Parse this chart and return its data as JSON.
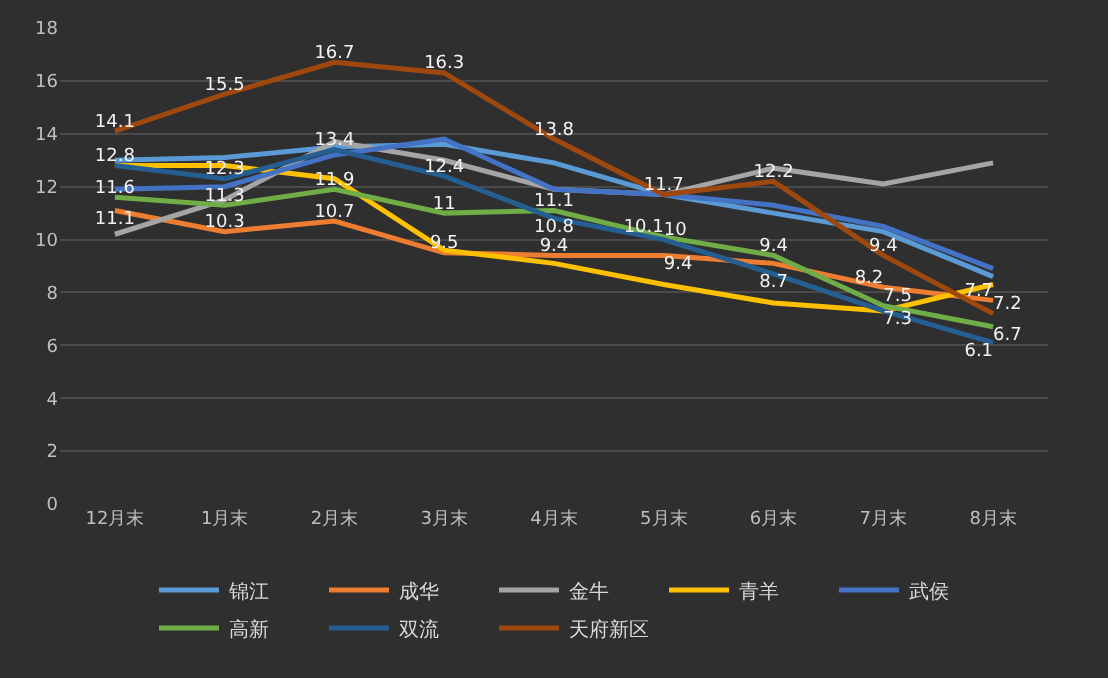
{
  "chart_data": {
    "type": "line",
    "categories": [
      "12月末",
      "1月末",
      "2月末",
      "3月末",
      "4月末",
      "5月末",
      "6月末",
      "7月末",
      "8月末"
    ],
    "series": [
      {
        "name": "锦江",
        "color": "#5b9bd5",
        "values": [
          13.0,
          13.1,
          13.5,
          13.6,
          12.9,
          11.7,
          11.0,
          10.3,
          8.6
        ],
        "value_labels": [
          null,
          null,
          null,
          null,
          null,
          null,
          null,
          null,
          null
        ]
      },
      {
        "name": "成华",
        "color": "#ed7d31",
        "values": [
          11.1,
          10.3,
          10.7,
          9.5,
          9.4,
          9.4,
          9.1,
          8.2,
          7.7
        ],
        "value_labels": [
          "11.1",
          "10.3",
          "10.7",
          "9.5",
          "9.4",
          "9.4",
          null,
          "8.2",
          "7.7"
        ]
      },
      {
        "name": "金牛",
        "color": "#a5a5a5",
        "values": [
          10.2,
          11.5,
          13.7,
          13.0,
          11.9,
          11.7,
          12.7,
          12.1,
          12.9
        ],
        "value_labels": [
          null,
          null,
          null,
          null,
          null,
          null,
          null,
          null,
          null
        ]
      },
      {
        "name": "青羊",
        "color": "#ffc000",
        "values": [
          12.8,
          12.8,
          12.3,
          9.6,
          9.1,
          8.3,
          7.6,
          7.3,
          8.3
        ],
        "value_labels": [
          null,
          null,
          null,
          null,
          null,
          null,
          null,
          null,
          null
        ]
      },
      {
        "name": "武侯",
        "color": "#4472c4",
        "values": [
          11.9,
          12.0,
          13.2,
          13.8,
          11.9,
          11.7,
          11.3,
          10.5,
          8.9
        ],
        "value_labels": [
          null,
          null,
          null,
          null,
          null,
          null,
          null,
          null,
          null
        ]
      },
      {
        "name": "高新",
        "color": "#70ad47",
        "values": [
          11.6,
          11.3,
          11.9,
          11.0,
          11.1,
          10.1,
          9.4,
          7.5,
          6.7
        ],
        "value_labels": [
          "11.6",
          "11.3",
          "11.9",
          "11",
          "11.1",
          "10.1",
          "9.4",
          "7.5",
          "6.7"
        ]
      },
      {
        "name": "双流",
        "color": "#255e91",
        "values": [
          12.8,
          12.3,
          13.4,
          12.4,
          10.8,
          10.0,
          8.7,
          7.3,
          6.1
        ],
        "value_labels": [
          "12.8",
          "12.3",
          "13.4",
          "12.4",
          "10.8",
          "10",
          "8.7",
          "7.3",
          "6.1"
        ]
      },
      {
        "name": "天府新区",
        "color": "#9e480e",
        "values": [
          14.1,
          15.5,
          16.7,
          16.3,
          13.8,
          11.7,
          12.2,
          9.4,
          7.2
        ],
        "value_labels": [
          "14.1",
          "15.5",
          "16.7",
          "16.3",
          "13.8",
          "11.7",
          "12.2",
          "9.4",
          "7.2"
        ]
      }
    ],
    "ylim": [
      0,
      18
    ],
    "yticks": [
      0,
      2,
      4,
      6,
      8,
      10,
      12,
      14,
      16,
      18
    ],
    "grid": "y",
    "legend": "bottom",
    "marker": "none",
    "line_style": "solid"
  }
}
